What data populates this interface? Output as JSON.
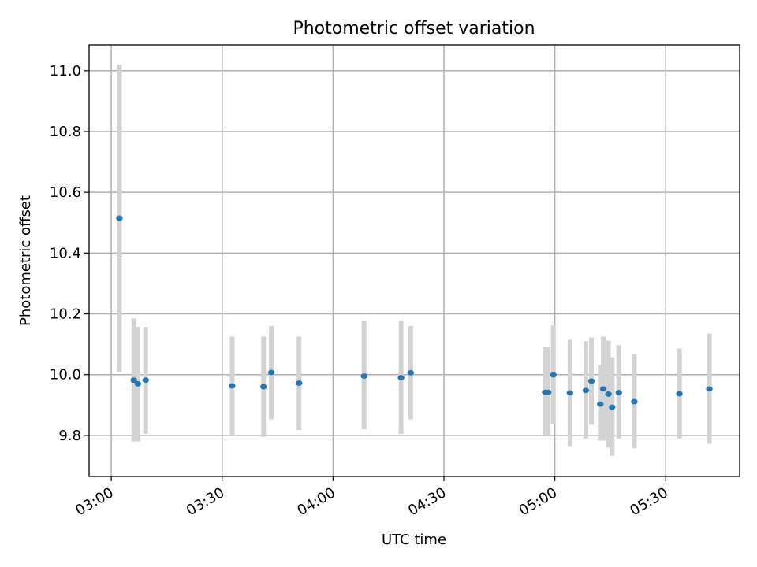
{
  "chart_data": {
    "type": "scatter",
    "title": "Photometric offset variation",
    "xlabel": "UTC time",
    "ylabel": "Photometric offset",
    "x_unit": "time (HH:MM UTC)",
    "xlim": [
      "02:54",
      "05:50"
    ],
    "ylim": [
      9.665,
      11.085
    ],
    "x_ticks": [
      "03:00",
      "03:30",
      "04:00",
      "04:30",
      "05:00",
      "05:30"
    ],
    "y_ticks": [
      9.8,
      10.0,
      10.2,
      10.4,
      10.6,
      10.8,
      11.0
    ],
    "y_tick_labels": [
      "9.8",
      "10.0",
      "10.2",
      "10.4",
      "10.6",
      "10.8",
      "11.0"
    ],
    "grid": true,
    "marker_color": "#1f77b4",
    "errorbar_color": "#d3d3d3",
    "points": [
      {
        "t": "03:02:12",
        "y": 10.515,
        "lo": 10.01,
        "hi": 11.02
      },
      {
        "t": "03:06:06",
        "y": 9.982,
        "lo": 9.78,
        "hi": 10.185
      },
      {
        "t": "03:07:12",
        "y": 9.97,
        "lo": 9.78,
        "hi": 10.157
      },
      {
        "t": "03:09:18",
        "y": 9.982,
        "lo": 9.805,
        "hi": 10.157
      },
      {
        "t": "03:32:42",
        "y": 9.963,
        "lo": 9.8,
        "hi": 10.125
      },
      {
        "t": "03:41:12",
        "y": 9.96,
        "lo": 9.795,
        "hi": 10.125
      },
      {
        "t": "03:43:18",
        "y": 10.007,
        "lo": 9.853,
        "hi": 10.16
      },
      {
        "t": "03:50:48",
        "y": 9.972,
        "lo": 9.818,
        "hi": 10.125
      },
      {
        "t": "04:08:24",
        "y": 9.995,
        "lo": 9.82,
        "hi": 10.177
      },
      {
        "t": "04:18:24",
        "y": 9.99,
        "lo": 9.805,
        "hi": 10.177
      },
      {
        "t": "04:21:00",
        "y": 10.006,
        "lo": 9.853,
        "hi": 10.16
      },
      {
        "t": "04:57:24",
        "y": 9.942,
        "lo": 9.8,
        "hi": 10.09
      },
      {
        "t": "04:58:12",
        "y": 9.942,
        "lo": 9.8,
        "hi": 10.09
      },
      {
        "t": "04:59:36",
        "y": 9.999,
        "lo": 9.838,
        "hi": 10.162
      },
      {
        "t": "05:04:06",
        "y": 9.94,
        "lo": 9.765,
        "hi": 10.115
      },
      {
        "t": "05:08:24",
        "y": 9.948,
        "lo": 9.79,
        "hi": 10.11
      },
      {
        "t": "05:09:54",
        "y": 9.979,
        "lo": 9.835,
        "hi": 10.122
      },
      {
        "t": "05:12:18",
        "y": 9.903,
        "lo": 9.783,
        "hi": 10.03
      },
      {
        "t": "05:13:06",
        "y": 9.953,
        "lo": 9.783,
        "hi": 10.125
      },
      {
        "t": "05:14:30",
        "y": 9.936,
        "lo": 9.76,
        "hi": 10.112
      },
      {
        "t": "05:15:30",
        "y": 9.893,
        "lo": 9.733,
        "hi": 10.057
      },
      {
        "t": "05:17:18",
        "y": 9.941,
        "lo": 9.79,
        "hi": 10.097
      },
      {
        "t": "05:21:30",
        "y": 9.911,
        "lo": 9.758,
        "hi": 10.067
      },
      {
        "t": "05:33:42",
        "y": 9.937,
        "lo": 9.79,
        "hi": 10.086
      },
      {
        "t": "05:41:48",
        "y": 9.953,
        "lo": 9.773,
        "hi": 10.135
      }
    ]
  }
}
